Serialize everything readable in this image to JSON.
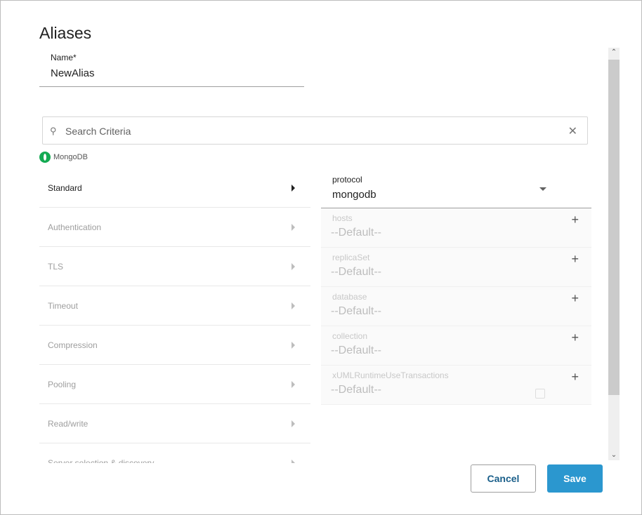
{
  "title": "Aliases",
  "name_field": {
    "label": "Name",
    "required_mark": "*",
    "value": "NewAlias"
  },
  "search": {
    "placeholder": "Search Criteria"
  },
  "source": {
    "name": "MongoDB",
    "color": "#13aa52"
  },
  "categories": [
    {
      "label": "Standard",
      "active": true
    },
    {
      "label": "Authentication"
    },
    {
      "label": "TLS"
    },
    {
      "label": "Timeout"
    },
    {
      "label": "Compression"
    },
    {
      "label": "Pooling"
    },
    {
      "label": "Read/write"
    },
    {
      "label": "Server selection & discovery"
    }
  ],
  "protocol": {
    "label": "protocol",
    "value": "mongodb"
  },
  "fields": [
    {
      "label": "hosts",
      "value": "--Default--"
    },
    {
      "label": "replicaSet",
      "value": "--Default--"
    },
    {
      "label": "database",
      "value": "--Default--"
    },
    {
      "label": "collection",
      "value": "--Default--"
    },
    {
      "label": "xUMLRuntimeUseTransactions",
      "value": "--Default--",
      "checkbox": false
    }
  ],
  "buttons": {
    "cancel": "Cancel",
    "save": "Save"
  },
  "colors": {
    "accent": "#2b97cf"
  }
}
